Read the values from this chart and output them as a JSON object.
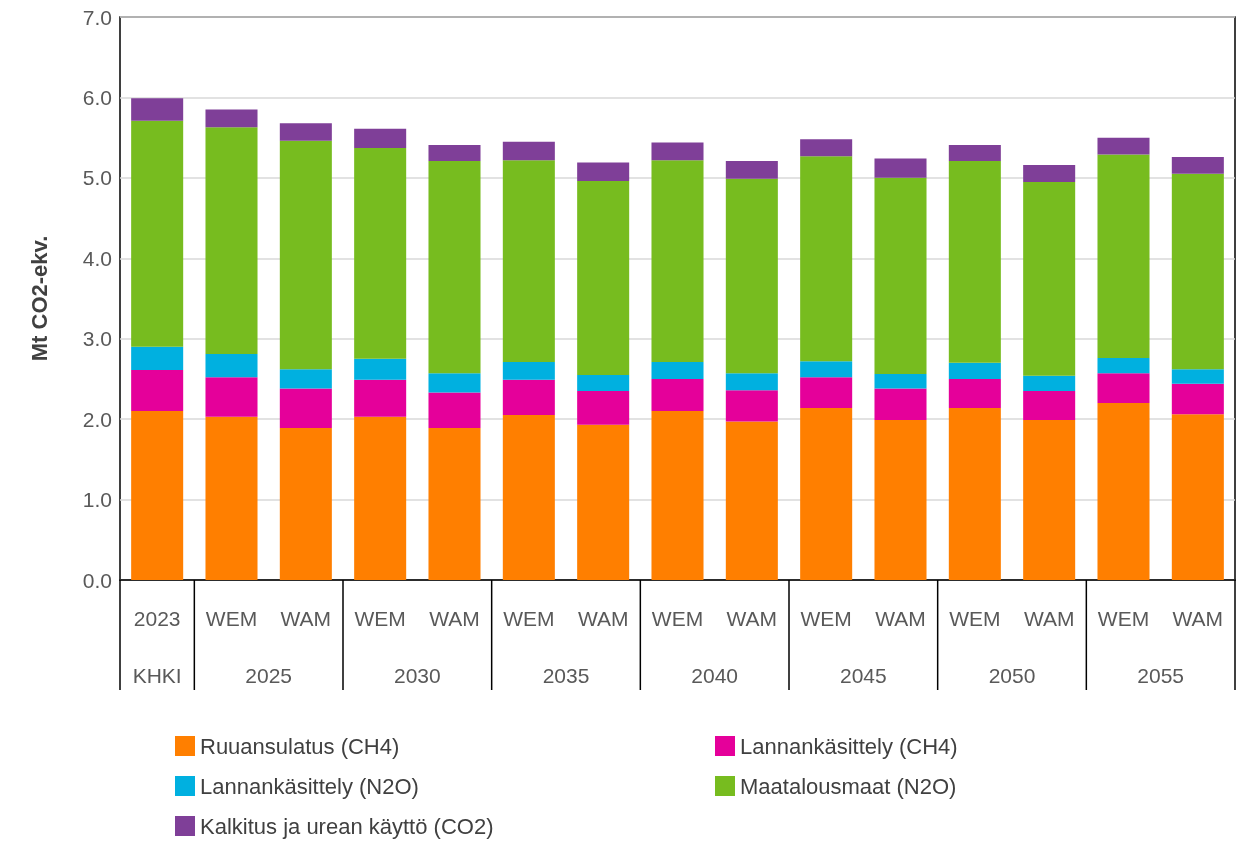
{
  "chart_data": {
    "type": "bar",
    "stacked": true,
    "ylabel": "Mt CO2-ekv.",
    "categories": [
      "2023",
      "WEM",
      "WAM",
      "WEM",
      "WAM",
      "WEM",
      "WAM",
      "WEM",
      "WAM",
      "WEM",
      "WAM",
      "WEM",
      "WAM",
      "WEM",
      "WAM"
    ],
    "annotations": [
      "KHKI",
      "2025",
      "2030",
      "2035",
      "2040",
      "2045",
      "2050",
      "2055"
    ],
    "series": [
      {
        "name": "Ruuansulatus (CH4)",
        "color": "#ff7f00",
        "values": [
          2.1,
          2.03,
          1.89,
          2.03,
          1.89,
          2.05,
          1.93,
          2.1,
          1.97,
          2.14,
          1.99,
          2.14,
          1.99,
          2.2,
          2.06
        ]
      },
      {
        "name": "Lannankäsittely (CH4)",
        "color": "#e5009a",
        "values": [
          0.51,
          0.49,
          0.49,
          0.46,
          0.44,
          0.44,
          0.42,
          0.4,
          0.39,
          0.38,
          0.39,
          0.36,
          0.36,
          0.37,
          0.38
        ]
      },
      {
        "name": "Lannankäsittely (N2O)",
        "color": "#00b0e0",
        "values": [
          0.29,
          0.29,
          0.24,
          0.26,
          0.24,
          0.22,
          0.2,
          0.21,
          0.21,
          0.2,
          0.18,
          0.2,
          0.19,
          0.19,
          0.18
        ]
      },
      {
        "name": "Maatalousmaat (N2O)",
        "color": "#77bc1f",
        "values": [
          2.81,
          2.82,
          2.84,
          2.62,
          2.64,
          2.51,
          2.41,
          2.51,
          2.42,
          2.55,
          2.44,
          2.51,
          2.41,
          2.53,
          2.43
        ]
      },
      {
        "name": "Kalkitus ja urean käyttö (CO2)",
        "color": "#7f3f98",
        "values": [
          0.28,
          0.22,
          0.22,
          0.24,
          0.2,
          0.23,
          0.23,
          0.22,
          0.22,
          0.21,
          0.24,
          0.2,
          0.21,
          0.21,
          0.21
        ]
      }
    ],
    "ylim": [
      0,
      7
    ],
    "yticks": [
      {
        "value": 0,
        "label": "0.0"
      },
      {
        "value": 1,
        "label": "1.0"
      },
      {
        "value": 2,
        "label": "2.0"
      },
      {
        "value": 3,
        "label": "3.0"
      },
      {
        "value": 4,
        "label": "4.0"
      },
      {
        "value": 5,
        "label": "5.0"
      },
      {
        "value": 6,
        "label": "6.0"
      },
      {
        "value": 7,
        "label": "7.0"
      }
    ],
    "grid": "y",
    "legend": "bottom"
  }
}
